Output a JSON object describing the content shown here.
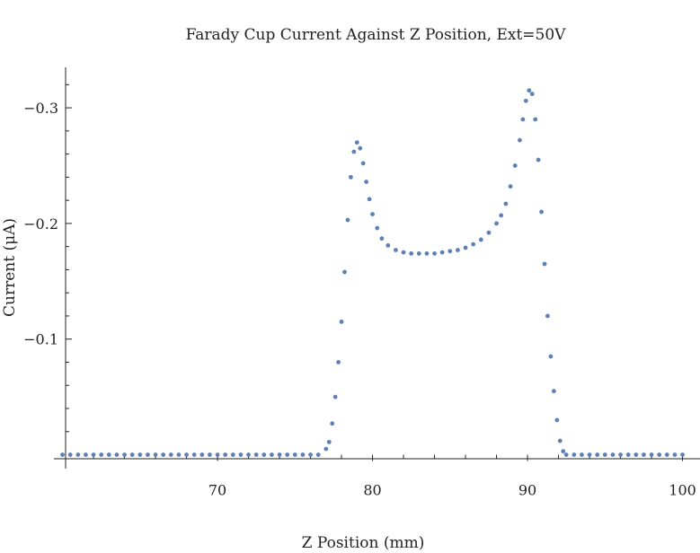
{
  "chart_data": {
    "type": "scatter",
    "title": "Farady Cup Current Against  Z Position, Ext=50V",
    "xlabel": "Z Position (mm)",
    "ylabel": "Current (μA)",
    "xlim": [
      60.2,
      100.2
    ],
    "ylim": [
      0.012,
      -0.335
    ],
    "x_ticks": [
      70,
      80,
      90,
      100
    ],
    "x_tick_labels": [
      "70",
      "80",
      "90",
      "100"
    ],
    "y_ticks": [
      -0.3,
      -0.2,
      -0.1
    ],
    "y_tick_labels": [
      "−0.3",
      "−0.2",
      "−0.1"
    ],
    "grid": false,
    "marker_color": "#5e81b5",
    "series": [
      {
        "x": [
          60.0,
          60.5,
          61.0,
          61.5,
          62.0,
          62.5,
          63.0,
          63.5,
          64.0,
          64.5,
          65.0,
          65.5,
          66.0,
          66.5,
          67.0,
          67.5,
          68.0,
          68.5,
          69.0,
          69.5,
          70.0,
          70.5,
          71.0,
          71.5,
          72.0,
          72.5,
          73.0,
          73.5,
          74.0,
          74.5,
          75.0,
          75.5,
          76.0,
          76.5,
          77.0,
          77.2,
          77.4,
          77.6,
          77.8,
          78.0,
          78.2,
          78.4,
          78.6,
          78.8,
          79.0,
          79.2,
          79.4,
          79.6,
          79.8,
          80.0,
          80.3,
          80.6,
          81.0,
          81.5,
          82.0,
          82.5,
          83.0,
          83.5,
          84.0,
          84.5,
          85.0,
          85.5,
          86.0,
          86.5,
          87.0,
          87.5,
          88.0,
          88.3,
          88.6,
          88.9,
          89.2,
          89.5,
          89.7,
          89.9,
          90.1,
          90.3,
          90.5,
          90.7,
          90.9,
          91.1,
          91.3,
          91.5,
          91.7,
          91.9,
          92.1,
          92.3,
          92.5,
          93.0,
          93.5,
          94.0,
          94.5,
          95.0,
          95.5,
          96.0,
          96.5,
          97.0,
          97.5,
          98.0,
          98.5,
          99.0,
          99.5,
          100.0
        ],
        "y": [
          0,
          0,
          0,
          0,
          0,
          0,
          0,
          0,
          0,
          0,
          0,
          0,
          0,
          0,
          0,
          0,
          0,
          0,
          0,
          0,
          0,
          0,
          0,
          0,
          0,
          0,
          0,
          0,
          0,
          0,
          0,
          0,
          0,
          0,
          -0.005,
          -0.011,
          -0.027,
          -0.05,
          -0.08,
          -0.115,
          -0.158,
          -0.203,
          -0.24,
          -0.262,
          -0.27,
          -0.265,
          -0.252,
          -0.236,
          -0.221,
          -0.208,
          -0.196,
          -0.187,
          -0.181,
          -0.177,
          -0.175,
          -0.174,
          -0.174,
          -0.174,
          -0.174,
          -0.175,
          -0.176,
          -0.177,
          -0.179,
          -0.182,
          -0.186,
          -0.192,
          -0.2,
          -0.207,
          -0.217,
          -0.232,
          -0.25,
          -0.272,
          -0.29,
          -0.306,
          -0.315,
          -0.312,
          -0.29,
          -0.255,
          -0.21,
          -0.165,
          -0.12,
          -0.085,
          -0.055,
          -0.03,
          -0.012,
          -0.003,
          0,
          0,
          0,
          0,
          0,
          0,
          0,
          0,
          0,
          0,
          0,
          0,
          0,
          0,
          0,
          0
        ]
      }
    ]
  }
}
